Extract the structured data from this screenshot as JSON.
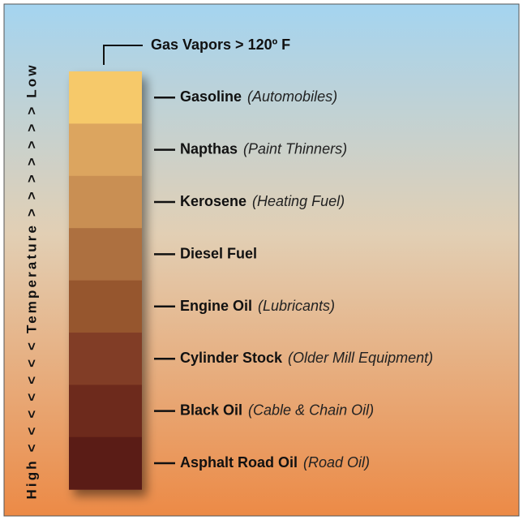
{
  "top_label": "Gas Vapors > 120º F",
  "axis_label": "High < < < < < < < Temperature > > > > > > > Low",
  "fractions": [
    {
      "name": "Gasoline",
      "use": "(Automobiles)",
      "color": "#f6c96a"
    },
    {
      "name": "Napthas",
      "use": "(Paint Thinners)",
      "color": "#dca55e"
    },
    {
      "name": "Kerosene",
      "use": "(Heating Fuel)",
      "color": "#c98f52"
    },
    {
      "name": "Diesel Fuel",
      "color": "#ad6f41"
    },
    {
      "name": "Engine Oil",
      "use": "(Lubricants)",
      "color": "#96562f"
    },
    {
      "name": "Cylinder Stock",
      "use": "(Older Mill Equipment)",
      "color": "#813e26"
    },
    {
      "name": "Black Oil",
      "use": "(Cable & Chain Oil)",
      "color": "#6d2b1c"
    },
    {
      "name": "Asphalt Road Oil",
      "use": "(Road Oil)",
      "color": "#5a1b14"
    }
  ]
}
